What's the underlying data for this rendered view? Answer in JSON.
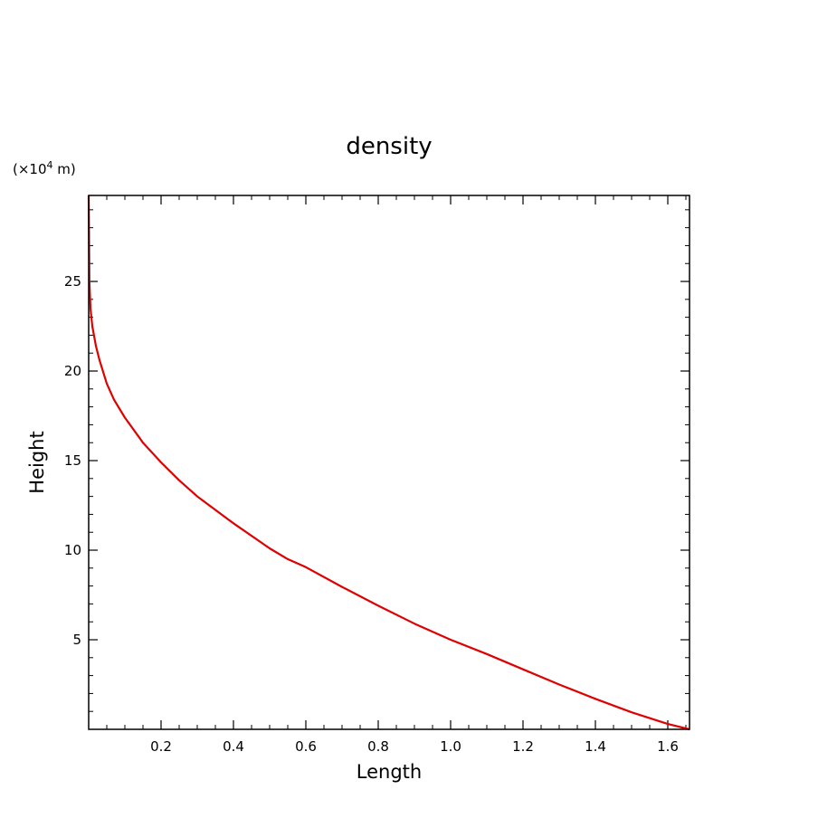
{
  "chart_data": {
    "type": "line",
    "title": "density",
    "xlabel": "Length",
    "ylabel": "Height",
    "y_unit_prefix": "(×10",
    "y_unit_exp": "4",
    "y_unit_suffix": " m)",
    "xlim": [
      0.0,
      1.66
    ],
    "ylim": [
      0.0,
      29.8
    ],
    "x_ticks": [
      0.2,
      0.4,
      0.6,
      0.8,
      1.0,
      1.2,
      1.4,
      1.6
    ],
    "x_tick_labels": [
      "0.2",
      "0.4",
      "0.6",
      "0.8",
      "1.0",
      "1.2",
      "1.4",
      "1.6"
    ],
    "y_ticks": [
      5,
      10,
      15,
      20,
      25
    ],
    "y_tick_labels": [
      "5",
      "10",
      "15",
      "20",
      "25"
    ],
    "x_minor_step": 0.05,
    "y_minor_step": 1,
    "grid": false,
    "series": [
      {
        "color": "#e00000",
        "x": [
          1.66,
          1.6,
          1.5,
          1.4,
          1.3,
          1.2,
          1.1,
          1.0,
          0.9,
          0.8,
          0.7,
          0.6,
          0.55,
          0.5,
          0.4,
          0.3,
          0.25,
          0.2,
          0.15,
          0.1,
          0.07,
          0.05,
          0.03,
          0.02,
          0.01,
          0.005,
          0.002,
          0.0
        ],
        "y": [
          0.0,
          0.3,
          0.95,
          1.7,
          2.5,
          3.35,
          4.2,
          5.0,
          5.9,
          6.9,
          7.95,
          9.05,
          9.5,
          10.1,
          11.5,
          13.0,
          13.9,
          14.9,
          16.0,
          17.4,
          18.4,
          19.3,
          20.6,
          21.4,
          22.5,
          23.5,
          25.0,
          29.8
        ]
      }
    ]
  }
}
